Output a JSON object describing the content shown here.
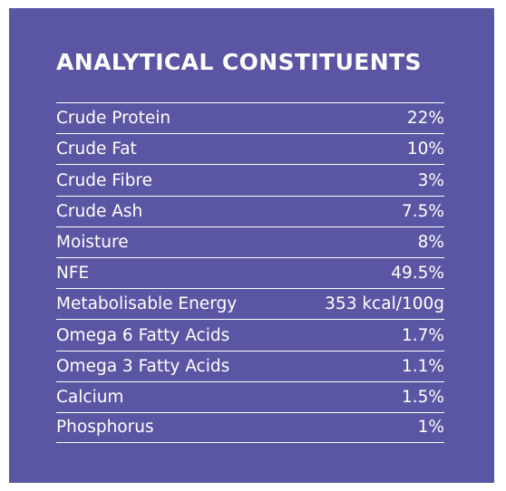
{
  "panel": {
    "background_color": "#5a56a3",
    "text_color": "#ffffff",
    "title": "ANALYTICAL CONSTITUENTS",
    "rows": [
      {
        "label": "Crude Protein",
        "value": "22%"
      },
      {
        "label": "Crude Fat",
        "value": "10%"
      },
      {
        "label": "Crude Fibre",
        "value": "3%"
      },
      {
        "label": "Crude Ash",
        "value": "7.5%"
      },
      {
        "label": "Moisture",
        "value": "8%"
      },
      {
        "label": "NFE",
        "value": "49.5%"
      },
      {
        "label": "Metabolisable Energy",
        "value": "353 kcal/100g"
      },
      {
        "label": "Omega 6 Fatty Acids",
        "value": "1.7%"
      },
      {
        "label": "Omega 3 Fatty Acids",
        "value": "1.1%"
      },
      {
        "label": "Calcium",
        "value": "1.5%"
      },
      {
        "label": "Phosphorus",
        "value": "1%"
      }
    ]
  }
}
